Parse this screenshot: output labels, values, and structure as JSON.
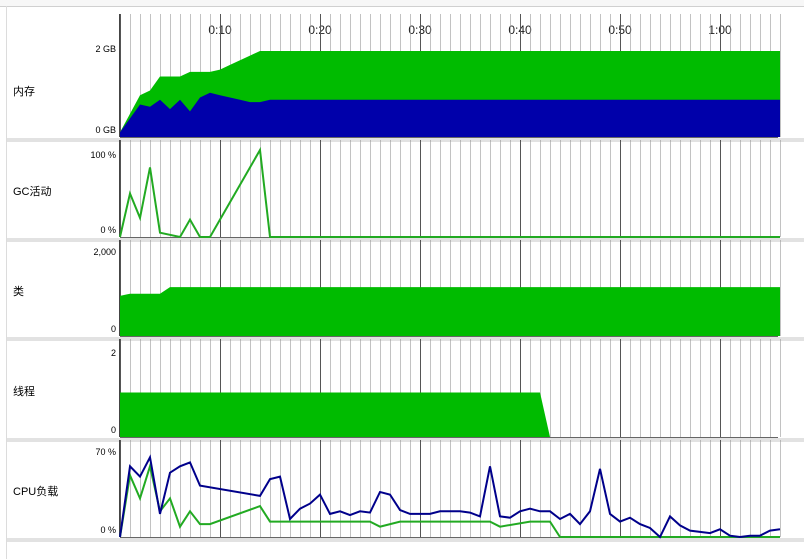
{
  "timeline": {
    "ticks": [
      "0:10",
      "0:20",
      "0:30",
      "0:40",
      "0:50",
      "1:00"
    ],
    "tick_seconds": [
      10,
      20,
      30,
      40,
      50,
      60
    ],
    "x_range_seconds": [
      0,
      66
    ]
  },
  "colors": {
    "green": "#00bb00",
    "blue": "#0000aa",
    "line_green": "#22aa22",
    "line_blue": "#00008b",
    "separator": "#e2e2e2",
    "grid": "#9a9a9a"
  },
  "panels": {
    "memory": {
      "label": "内存",
      "ymax_label": "2 GB",
      "ymin_label": "0 GB"
    },
    "gc": {
      "label": "GC活动",
      "ymax_label": "100 %",
      "ymin_label": "0 %"
    },
    "classes": {
      "label": "类",
      "ymax_label": "2,000",
      "ymin_label": "0"
    },
    "threads": {
      "label": "线程",
      "ymax_label": "2",
      "ymin_label": "0"
    },
    "cpu": {
      "label": "CPU负载",
      "ymax_label": "70 %",
      "ymin_label": "0 %"
    }
  },
  "chart_data": [
    {
      "type": "area",
      "title": "内存",
      "ylim_gb": [
        0,
        2
      ],
      "series": [
        {
          "values_gb": [
            [
              0,
              0.1
            ],
            [
              1,
              0.5
            ],
            [
              2,
              0.9
            ],
            [
              3,
              1.0
            ],
            [
              4,
              1.3
            ],
            [
              5,
              1.3
            ],
            [
              6,
              1.3
            ],
            [
              7,
              1.4
            ],
            [
              8,
              1.4
            ],
            [
              9,
              1.4
            ],
            [
              10,
              1.45
            ],
            [
              11,
              1.55
            ],
            [
              12,
              1.65
            ],
            [
              13,
              1.75
            ],
            [
              14,
              1.85
            ],
            [
              66,
              1.85
            ]
          ]
        },
        {
          "values_gb": [
            [
              0,
              0.1
            ],
            [
              1,
              0.4
            ],
            [
              2,
              0.7
            ],
            [
              3,
              0.65
            ],
            [
              4,
              0.8
            ],
            [
              5,
              0.6
            ],
            [
              6,
              0.8
            ],
            [
              7,
              0.55
            ],
            [
              8,
              0.85
            ],
            [
              9,
              0.95
            ],
            [
              10,
              0.9
            ],
            [
              11,
              0.85
            ],
            [
              12,
              0.8
            ],
            [
              13,
              0.75
            ],
            [
              14,
              0.75
            ],
            [
              15,
              0.8
            ],
            [
              20,
              0.8
            ],
            [
              23,
              0.8
            ],
            [
              66,
              0.8
            ]
          ]
        }
      ]
    },
    {
      "type": "line",
      "title": "GC活动",
      "ylim_percent": [
        0,
        100
      ],
      "series": [
        {
          "values_percent": [
            [
              0,
              0
            ],
            [
              1,
              50
            ],
            [
              2,
              22
            ],
            [
              3,
              80
            ],
            [
              4,
              5
            ],
            [
              6,
              0
            ],
            [
              7,
              20
            ],
            [
              8,
              0
            ],
            [
              9,
              0
            ],
            [
              14,
              100
            ],
            [
              15,
              0
            ],
            [
              66,
              0
            ]
          ]
        }
      ]
    },
    {
      "type": "area",
      "title": "类",
      "ylim": [
        0,
        2000
      ],
      "series": [
        {
          "values": [
            [
              0,
              900
            ],
            [
              1,
              950
            ],
            [
              4,
              950
            ],
            [
              5,
              1100
            ],
            [
              66,
              1100
            ]
          ]
        }
      ]
    },
    {
      "type": "area",
      "title": "线程",
      "ylim": [
        0,
        2
      ],
      "series": [
        {
          "values": [
            [
              0,
              1
            ],
            [
              42,
              1
            ],
            [
              43,
              0
            ]
          ]
        }
      ]
    },
    {
      "type": "line",
      "title": "CPU负载",
      "ylim_percent": [
        0,
        70
      ],
      "series": [
        {
          "values_percent": [
            [
              0,
              0
            ],
            [
              1,
              55
            ],
            [
              2,
              47
            ],
            [
              3,
              62
            ],
            [
              4,
              18
            ],
            [
              5,
              50
            ],
            [
              6,
              55
            ],
            [
              7,
              58
            ],
            [
              8,
              40
            ],
            [
              14,
              32
            ],
            [
              15,
              45
            ],
            [
              16,
              47
            ],
            [
              17,
              14
            ],
            [
              18,
              22
            ],
            [
              19,
              26
            ],
            [
              20,
              33
            ],
            [
              21,
              18
            ],
            [
              22,
              20
            ],
            [
              23,
              17
            ],
            [
              24,
              20
            ],
            [
              25,
              19
            ],
            [
              26,
              35
            ],
            [
              27,
              33
            ],
            [
              28,
              21
            ],
            [
              29,
              18
            ],
            [
              30,
              18
            ],
            [
              31,
              18
            ],
            [
              32,
              20
            ],
            [
              33,
              20
            ],
            [
              34,
              20
            ],
            [
              35,
              19
            ],
            [
              36,
              16
            ],
            [
              37,
              55
            ],
            [
              38,
              16
            ],
            [
              39,
              15
            ],
            [
              40,
              20
            ],
            [
              41,
              22
            ],
            [
              42,
              20
            ],
            [
              43,
              20
            ],
            [
              44,
              14
            ],
            [
              45,
              18
            ],
            [
              46,
              10
            ],
            [
              47,
              20
            ],
            [
              48,
              53
            ],
            [
              49,
              18
            ],
            [
              50,
              12
            ],
            [
              51,
              15
            ],
            [
              52,
              10
            ],
            [
              53,
              7
            ],
            [
              54,
              0
            ],
            [
              55,
              16
            ],
            [
              56,
              9
            ],
            [
              57,
              5
            ],
            [
              58,
              4
            ],
            [
              59,
              3
            ],
            [
              60,
              6
            ],
            [
              61,
              1
            ],
            [
              62,
              0
            ],
            [
              63,
              1
            ],
            [
              64,
              1
            ],
            [
              65,
              5
            ],
            [
              66,
              6
            ]
          ]
        },
        {
          "values_percent": [
            [
              0,
              0
            ],
            [
              1,
              48
            ],
            [
              2,
              30
            ],
            [
              3,
              55
            ],
            [
              4,
              20
            ],
            [
              5,
              30
            ],
            [
              6,
              8
            ],
            [
              7,
              20
            ],
            [
              8,
              10
            ],
            [
              9,
              10
            ],
            [
              14,
              24
            ],
            [
              15,
              12
            ],
            [
              16,
              12
            ],
            [
              25,
              12
            ],
            [
              26,
              8
            ],
            [
              28,
              12
            ],
            [
              37,
              12
            ],
            [
              38,
              8
            ],
            [
              41,
              12
            ],
            [
              43,
              12
            ],
            [
              44,
              0
            ],
            [
              66,
              0
            ]
          ]
        }
      ]
    }
  ]
}
